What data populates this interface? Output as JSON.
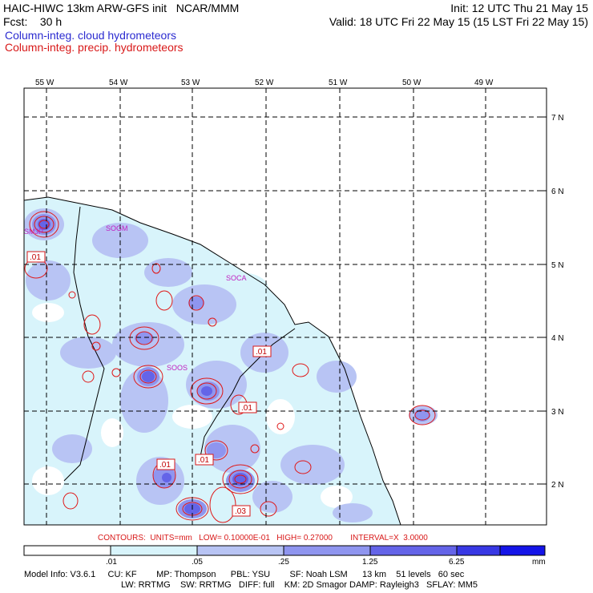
{
  "header": {
    "line1_left": "HAIC-HIWC 13km ARW-GFS init   NCAR/MMM",
    "line1_right": "Init: 12 UTC Thu 21 May 15",
    "line2_left": "Fcst:    30 h",
    "line2_right": "Valid: 18 UTC Fri 22 May 15 (15 LST Fri 22 May 15)",
    "field_cloud": "Column-integ. cloud hydrometeors",
    "field_precip": "Column-integ. precip. hydrometeors"
  },
  "map": {
    "lon_labels": [
      "55 W",
      "54 W",
      "53 W",
      "52 W",
      "51 W",
      "50 W",
      "49 W"
    ],
    "lat_labels": [
      "7 N",
      "6 N",
      "5 N",
      "4 N",
      "3 N",
      "2 N"
    ],
    "sites": [
      "SMJP",
      "SOGM",
      "SOCA",
      "SOOS"
    ],
    "contour_labels": [
      ".01",
      ".01",
      ".01",
      ".01",
      ".01",
      ".01",
      ".03"
    ]
  },
  "contours_info": {
    "text": "CONTOURS:  UNITS=mm   LOW= 0.10000E-01   HIGH= 0.27000        INTERVAL=X  3.0000"
  },
  "colorbar": {
    "labels": [
      ".01",
      ".05",
      ".25",
      "1.25",
      "6.25"
    ],
    "units": "mm",
    "colors": [
      "#ffffff",
      "#d8f4fb",
      "#b8c4f4",
      "#8f95ef",
      "#6464e8",
      "#3838e4",
      "#1414e8"
    ]
  },
  "footer": {
    "line1": "Model Info: V3.6.1     CU: KF        MP: Thompson      PBL: YSU        SF: Noah LSM      13 km    51 levels   60 sec",
    "line2": "LW: RRTMG    SW: RRTMG   DIFF: full    KM: 2D Smagor DAMP: Rayleigh3   SFLAY: MM5"
  }
}
